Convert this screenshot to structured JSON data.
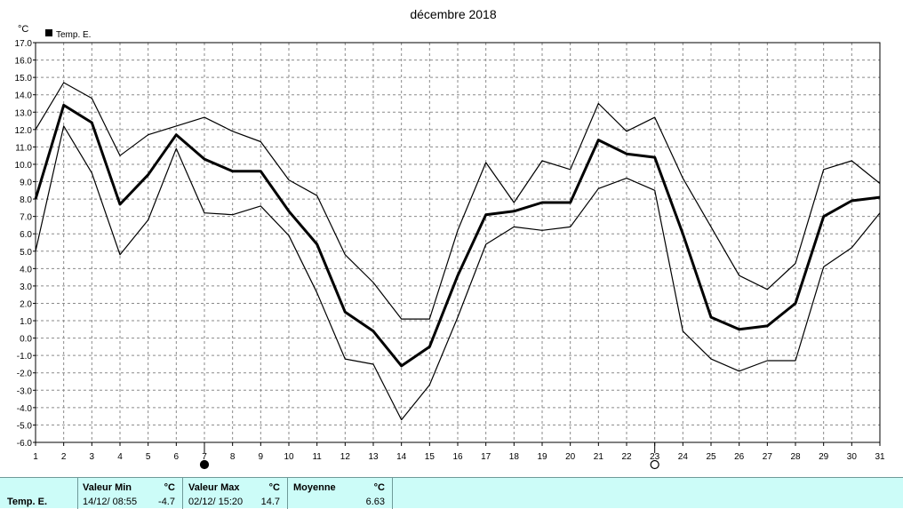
{
  "chart_data": {
    "type": "line",
    "title": "décembre 2018",
    "ylabel": "°C",
    "xlabel": "",
    "ylim": [
      -6,
      17
    ],
    "xlim": [
      1,
      31
    ],
    "ytick_step": 1,
    "y_tick_labels": [
      "-6.0",
      "-5.0",
      "-4.0",
      "-3.0",
      "-2.0",
      "-1.0",
      "0.0",
      "1.0",
      "2.0",
      "3.0",
      "4.0",
      "5.0",
      "6.0",
      "7.0",
      "8.0",
      "9.0",
      "10.0",
      "11.0",
      "12.0",
      "13.0",
      "14.0",
      "15.0",
      "16.0",
      "17.0"
    ],
    "x_tick_labels": [
      "1",
      "2",
      "3",
      "4",
      "5",
      "6",
      "7",
      "8",
      "9",
      "10",
      "11",
      "12",
      "13",
      "14",
      "15",
      "16",
      "17",
      "18",
      "19",
      "20",
      "21",
      "22",
      "23",
      "24",
      "25",
      "26",
      "27",
      "28",
      "29",
      "30",
      "31"
    ],
    "grid": true,
    "legend": {
      "position": "top-left",
      "entries": [
        "Temp. E."
      ]
    },
    "moon_phase_markers": [
      {
        "day": 7,
        "symbol": "full-circle-icon"
      },
      {
        "day": 23,
        "symbol": "open-circle-icon"
      }
    ],
    "x": [
      1,
      2,
      3,
      4,
      5,
      6,
      7,
      8,
      9,
      10,
      11,
      12,
      13,
      14,
      15,
      16,
      17,
      18,
      19,
      20,
      21,
      22,
      23,
      24,
      25,
      26,
      27,
      28,
      29,
      30,
      31
    ],
    "series": [
      {
        "name": "Temp. E.",
        "role": "mean",
        "values": [
          8.0,
          13.4,
          12.4,
          7.7,
          9.4,
          11.7,
          10.3,
          9.6,
          9.6,
          7.3,
          5.4,
          1.5,
          0.4,
          -1.6,
          -0.5,
          3.6,
          7.1,
          7.3,
          7.8,
          7.8,
          11.4,
          10.6,
          10.4,
          6.0,
          1.2,
          0.5,
          0.7,
          2.0,
          7.0,
          7.9,
          8.1
        ]
      },
      {
        "role": "max",
        "values": [
          12.0,
          14.7,
          13.8,
          10.5,
          11.7,
          12.2,
          12.7,
          11.9,
          11.3,
          9.1,
          8.2,
          4.8,
          3.2,
          1.1,
          1.1,
          6.2,
          10.1,
          7.8,
          10.2,
          9.7,
          13.5,
          11.9,
          12.7,
          9.2,
          6.4,
          3.6,
          2.8,
          4.3,
          9.7,
          10.2,
          8.9
        ]
      },
      {
        "role": "min",
        "values": [
          5.0,
          12.2,
          9.5,
          4.8,
          6.8,
          10.9,
          7.2,
          7.1,
          7.6,
          5.9,
          2.6,
          -1.2,
          -1.5,
          -4.7,
          -2.7,
          1.2,
          5.4,
          6.4,
          6.2,
          6.4,
          8.6,
          9.2,
          8.5,
          0.4,
          -1.2,
          -1.9,
          -1.3,
          -1.3,
          4.1,
          5.2,
          7.2
        ]
      }
    ]
  },
  "stats": {
    "series_name": "Temp. E.",
    "min": {
      "header": "Valeur Min",
      "unit": "°C",
      "date": "14/12/  08:55",
      "value": "-4.7"
    },
    "max": {
      "header": "Valeur Max",
      "unit": "°C",
      "date": "02/12/  15:20",
      "value": "14.7"
    },
    "mean": {
      "header": "Moyenne",
      "unit": "°C",
      "value": "6.63"
    }
  }
}
